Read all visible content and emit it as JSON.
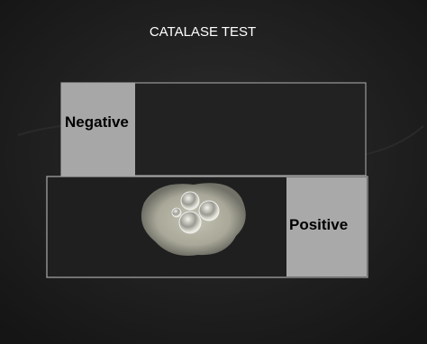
{
  "title": "CATALASE TEST",
  "labels": {
    "negative": "Negative",
    "positive": "Positive"
  }
}
